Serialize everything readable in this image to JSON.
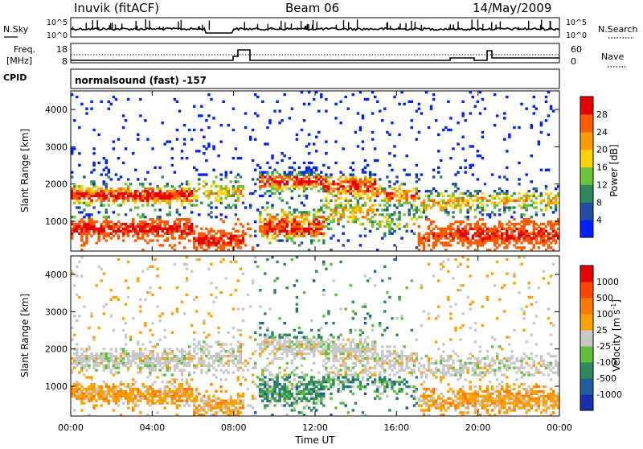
{
  "header": {
    "station": "Inuvik (fitACF)",
    "beam": "Beam 06",
    "date": "14/May/2009"
  },
  "top_panels": {
    "nsky_label": "N.Sky",
    "nsearch_label": "N.Search",
    "nsky_ticks": [
      "10^5",
      "10^0"
    ],
    "nsearch_ticks": [
      "10^5",
      "10^0"
    ],
    "freq_label": "Freq.",
    "freq_unit": "[MHz]",
    "freq_ticks": [
      "18",
      "8"
    ],
    "nave_label": "Nave",
    "nave_ticks": [
      "60",
      "0"
    ],
    "cpid_label": "CPID",
    "cpid_text": "normalsound (fast) -157"
  },
  "chart_data": [
    {
      "type": "heatmap",
      "panel": "power",
      "ylabel": "Slant Range [km]",
      "yticks": [
        "1000",
        "2000",
        "3000",
        "4000"
      ],
      "ylim": [
        200,
        4500
      ],
      "xlim": [
        0,
        24
      ],
      "colorbar": {
        "label": "Power [dB]",
        "ticks": [
          "4",
          "8",
          "12",
          "16",
          "20",
          "24",
          "28"
        ],
        "colors": [
          "#0020ff",
          "#1f4ea0",
          "#2e8a5c",
          "#6cc33c",
          "#ffd200",
          "#ff9a00",
          "#ff5a00",
          "#e60000"
        ]
      }
    },
    {
      "type": "heatmap",
      "panel": "velocity",
      "ylabel": "Slant Range [km]",
      "yticks": [
        "1000",
        "2000",
        "3000",
        "4000"
      ],
      "ylim": [
        200,
        4500
      ],
      "xlim": [
        0,
        24
      ],
      "xlabel": "Time UT",
      "xticks": [
        "00:00",
        "04:00",
        "08:00",
        "12:00",
        "16:00",
        "20:00",
        "00:00"
      ],
      "colorbar": {
        "label": "Velocity [m s",
        "label_sup": "-1",
        "label_end": "]",
        "ticks": [
          "1000",
          "500",
          "100",
          "25",
          "-25",
          "-100",
          "-500",
          "-1000"
        ],
        "colors": [
          "#1a2fb0",
          "#1f5d9e",
          "#2e8a5c",
          "#5fc03c",
          "#c8c8c8",
          "#ffa000",
          "#ff7a00",
          "#ff4500",
          "#e60000"
        ]
      }
    }
  ]
}
